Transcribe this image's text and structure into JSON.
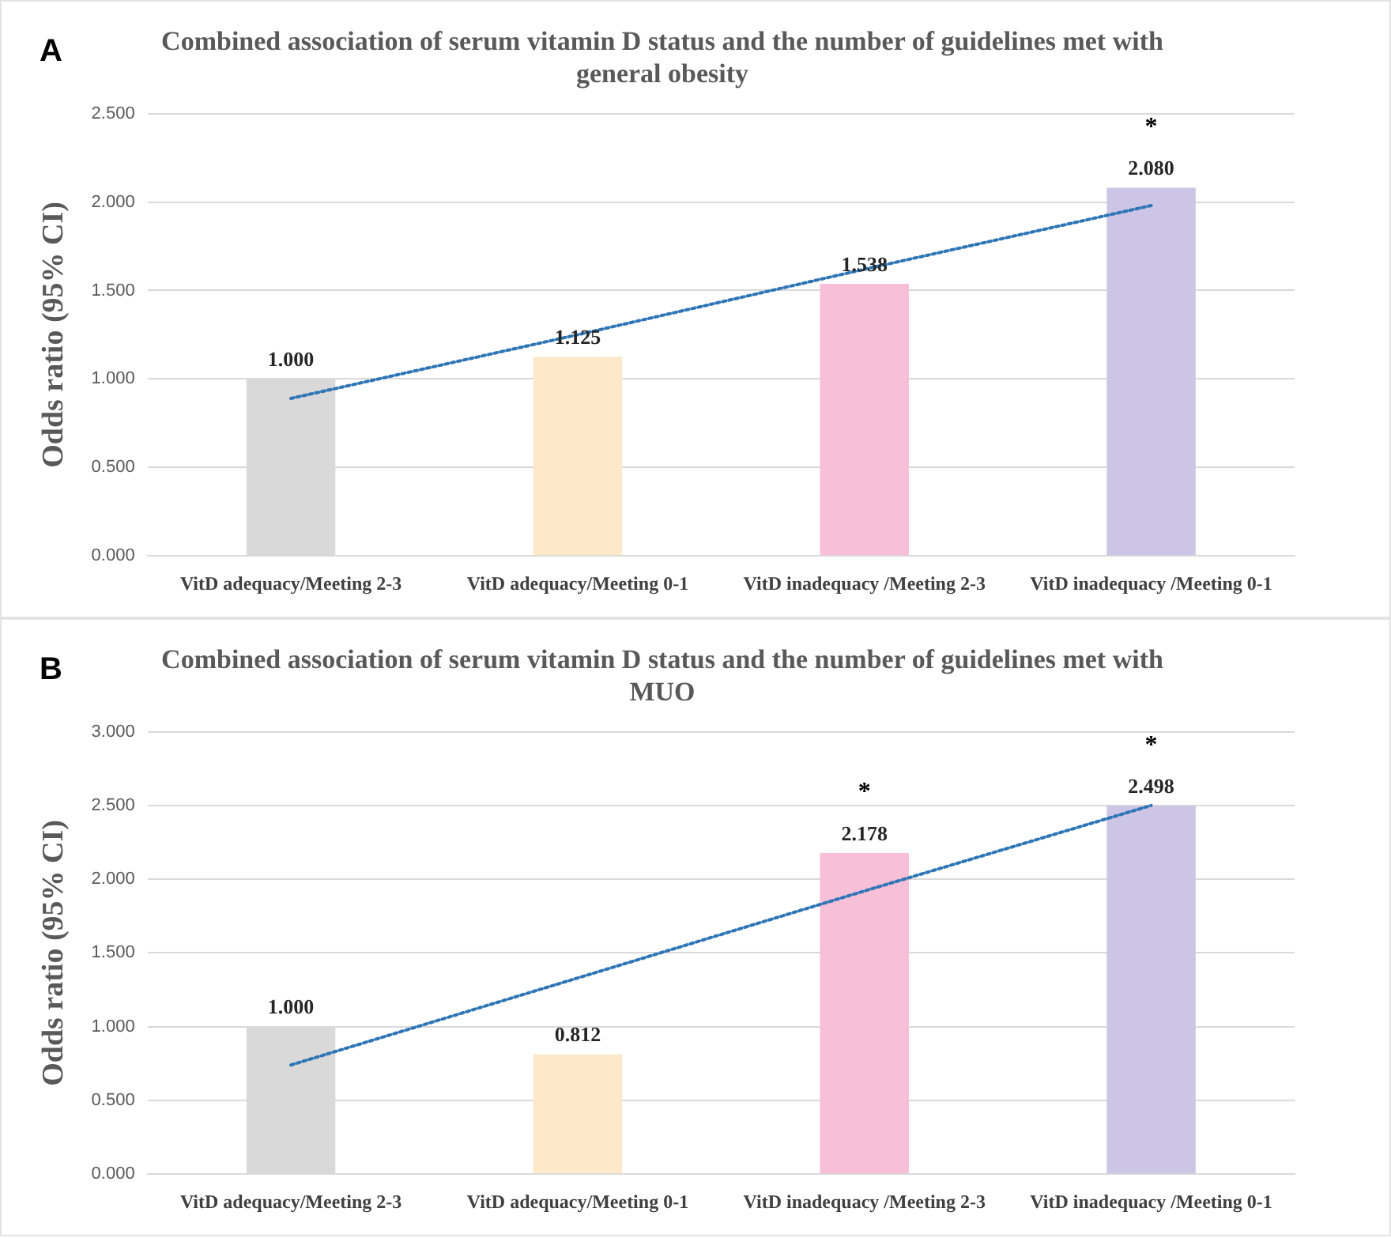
{
  "chart_data": [
    {
      "type": "bar",
      "title": [
        "Combined association of serum vitamin D status and the number of guidelines met with",
        "general obesity"
      ],
      "ylabel": "Odds ratio (95% CI)",
      "annotations": [
        "A",
        {
          "text": "*",
          "x": "VitD inadequacy /Meeting 0-1",
          "y": 2.08
        }
      ],
      "categories": [
        "VitD adequacy/Meeting 2-3",
        "VitD adequacy/Meeting 0-1",
        "VitD inadequacy /Meeting 2-3",
        "VitD inadequacy /Meeting 0-1"
      ],
      "series": [
        {
          "colors": [
            "#d9d9d9",
            "#fde9c9",
            "#f8bfd9",
            "#cdc5e6"
          ],
          "values": [
            1.0,
            1.125,
            1.538,
            2.08
          ],
          "value_labels": [
            "1.000",
            "1.125",
            "1.538",
            "2.080"
          ]
        },
        {
          "type": "line",
          "color": "#2e75b6",
          "values": [
            0.89,
            1.25,
            1.62,
            1.98
          ],
          "line_style": "dotted",
          "marker": "none"
        }
      ],
      "ylim": [
        0,
        2.5
      ],
      "yticks": [
        {
          "value": 0,
          "label": "0.000"
        },
        {
          "value": 0.5,
          "label": "0.500"
        },
        {
          "value": 1,
          "label": "1.000"
        },
        {
          "value": 1.5,
          "label": "1.500"
        },
        {
          "value": 2,
          "label": "2.000"
        },
        {
          "value": 2.5,
          "label": "2.500"
        }
      ],
      "grid": "y",
      "legend": false
    },
    {
      "type": "bar",
      "title": [
        "Combined association of serum vitamin D status and the number of guidelines met with",
        "MUO"
      ],
      "ylabel": "Odds ratio (95% CI)",
      "annotations": [
        "B",
        {
          "text": "*",
          "x": "VitD inadequacy /Meeting 2-3",
          "y": 2.178
        },
        {
          "text": "*",
          "x": "VitD inadequacy /Meeting 0-1",
          "y": 2.498
        }
      ],
      "categories": [
        "VitD adequacy/Meeting 2-3",
        "VitD adequacy/Meeting 0-1",
        "VitD inadequacy /Meeting 2-3",
        "VitD inadequacy /Meeting 0-1"
      ],
      "series": [
        {
          "colors": [
            "#d9d9d9",
            "#fde9c9",
            "#f8bfd9",
            "#cdc5e6"
          ],
          "values": [
            1.0,
            0.812,
            2.178,
            2.498
          ],
          "value_labels": [
            "1.000",
            "0.812",
            "2.178",
            "2.498"
          ]
        },
        {
          "type": "line",
          "color": "#2e75b6",
          "values": [
            0.74,
            1.33,
            1.92,
            2.5
          ],
          "line_style": "dotted",
          "marker": "none"
        }
      ],
      "ylim": [
        0,
        3
      ],
      "yticks": [
        {
          "value": 0,
          "label": "0.000"
        },
        {
          "value": 0.5,
          "label": "0.500"
        },
        {
          "value": 1,
          "label": "1.000"
        },
        {
          "value": 1.5,
          "label": "1.500"
        },
        {
          "value": 2,
          "label": "2.000"
        },
        {
          "value": 2.5,
          "label": "2.500"
        },
        {
          "value": 3,
          "label": "3.000"
        }
      ],
      "grid": "y",
      "legend": false
    }
  ]
}
